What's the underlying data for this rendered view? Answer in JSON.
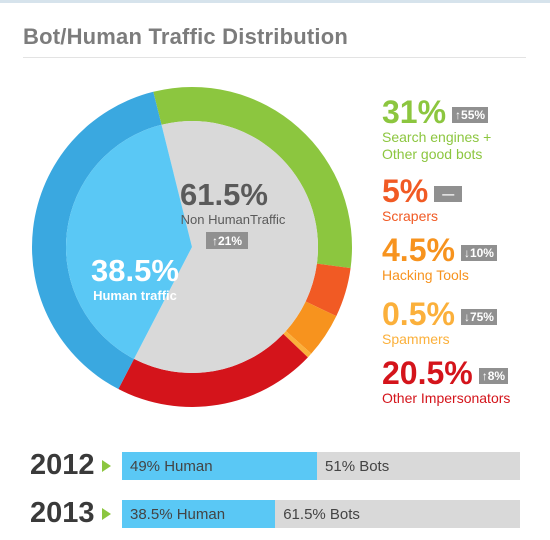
{
  "title": "Bot/Human Traffic Distribution",
  "center": {
    "pct": "61.5%",
    "label": "Non HumanTraffic",
    "change": "↑21%"
  },
  "human": {
    "pct": "38.5%",
    "label": "Human traffic"
  },
  "legend": [
    {
      "pct": "31%",
      "badge": "↑55%",
      "line1": "Search engines +",
      "line2": "Other good bots",
      "color": "#8cc63f"
    },
    {
      "pct": "5%",
      "badge": "—",
      "line1": "Scrapers",
      "line2": "",
      "color": "#f15a24"
    },
    {
      "pct": "4.5%",
      "badge": "↓10%",
      "line1": "Hacking Tools",
      "line2": "",
      "color": "#f7931e"
    },
    {
      "pct": "0.5%",
      "badge": "↓75%",
      "line1": "Spammers",
      "line2": "",
      "color": "#fbb03b"
    },
    {
      "pct": "20.5%",
      "badge": "↑8%",
      "line1": "Other Impersonators",
      "line2": "",
      "color": "#d4141b"
    }
  ],
  "bars": [
    {
      "year": "2012",
      "human_label": "49% Human",
      "bots_label": "51% Bots",
      "human_value": 49
    },
    {
      "year": "2013",
      "human_label": "38.5% Human",
      "bots_label": "61.5% Bots",
      "human_value": 38.5
    }
  ],
  "chart_data": [
    {
      "type": "pie",
      "title": "Bot/Human Traffic Distribution",
      "categories": [
        "Search engines + Other good bots",
        "Scrapers",
        "Hacking Tools",
        "Spammers",
        "Other Impersonators",
        "Human traffic"
      ],
      "values": [
        31,
        5,
        4.5,
        0.5,
        20.5,
        38.5
      ],
      "inner": {
        "Non HumanTraffic": 61.5,
        "Human traffic": 38.5
      },
      "colors": {
        "Search engines + Other good bots": "#8cc63f",
        "Scrapers": "#f15a24",
        "Hacking Tools": "#f7931e",
        "Spammers": "#fbb03b",
        "Other Impersonators": "#d4141b",
        "Human traffic": "#3aa8e0",
        "Human traffic (inner)": "#5ac8f5",
        "Non HumanTraffic (inner)": "#d9d9d9"
      }
    },
    {
      "type": "bar",
      "orientation": "horizontal",
      "stacked": true,
      "categories": [
        "2012",
        "2013"
      ],
      "series": [
        {
          "name": "Human",
          "values": [
            49,
            38.5
          ]
        },
        {
          "name": "Bots",
          "values": [
            51,
            61.5
          ]
        }
      ],
      "xlim": [
        0,
        100
      ]
    }
  ]
}
